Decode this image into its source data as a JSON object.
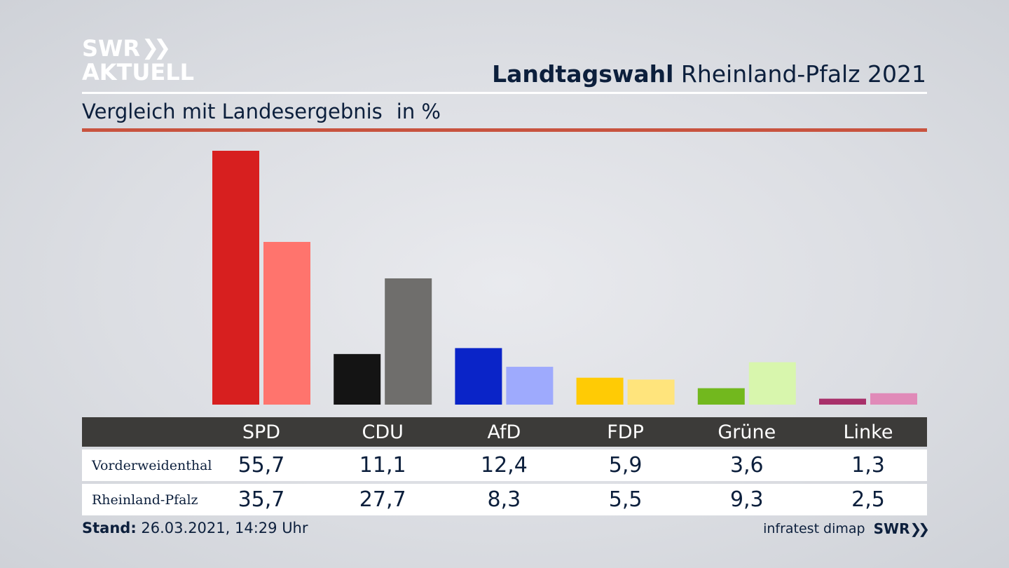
{
  "logo": {
    "line1": "SWR",
    "line2": "AKTUELL",
    "chevrons": "»"
  },
  "header": {
    "title_bold": "Landtagswahl",
    "title_regular": "Rheinland-Pfalz 2021"
  },
  "subtitle": {
    "text": "Vergleich mit Landesergebnis",
    "unit": "in %"
  },
  "colors": {
    "accent_rule": "#c8533f",
    "header_row_bg": "#3c3b39",
    "text_dark": "#0c1f3c"
  },
  "chart_data": {
    "type": "bar",
    "categories": [
      "SPD",
      "CDU",
      "AfD",
      "FDP",
      "Grüne",
      "Linke"
    ],
    "series": [
      {
        "name": "Vorderweidenthal",
        "values": [
          55.7,
          11.1,
          12.4,
          5.9,
          3.6,
          1.3
        ],
        "colors": [
          "#d71f1f",
          "#141414",
          "#0a24c8",
          "#ffcb05",
          "#72b81e",
          "#a8306a"
        ]
      },
      {
        "name": "Rheinland-Pfalz",
        "values": [
          35.7,
          27.7,
          8.3,
          5.5,
          9.3,
          2.5
        ],
        "colors": [
          "#ff746d",
          "#6f6e6c",
          "#9eaafd",
          "#ffe47c",
          "#d8f6ad",
          "#e08ab8"
        ]
      }
    ],
    "value_labels": [
      [
        "55,7",
        "11,1",
        "12,4",
        "5,9",
        "3,6",
        "1,3"
      ],
      [
        "35,7",
        "27,7",
        "8,3",
        "5,5",
        "9,3",
        "2,5"
      ]
    ],
    "ylim": [
      0,
      55.7
    ],
    "grid": false,
    "legend": "table-below"
  },
  "footer": {
    "stand_label": "Stand:",
    "stand_value": "26.03.2021, 14:29 Uhr",
    "source": "infratest dimap",
    "brand": "SWR",
    "brand_chevrons": "»"
  }
}
